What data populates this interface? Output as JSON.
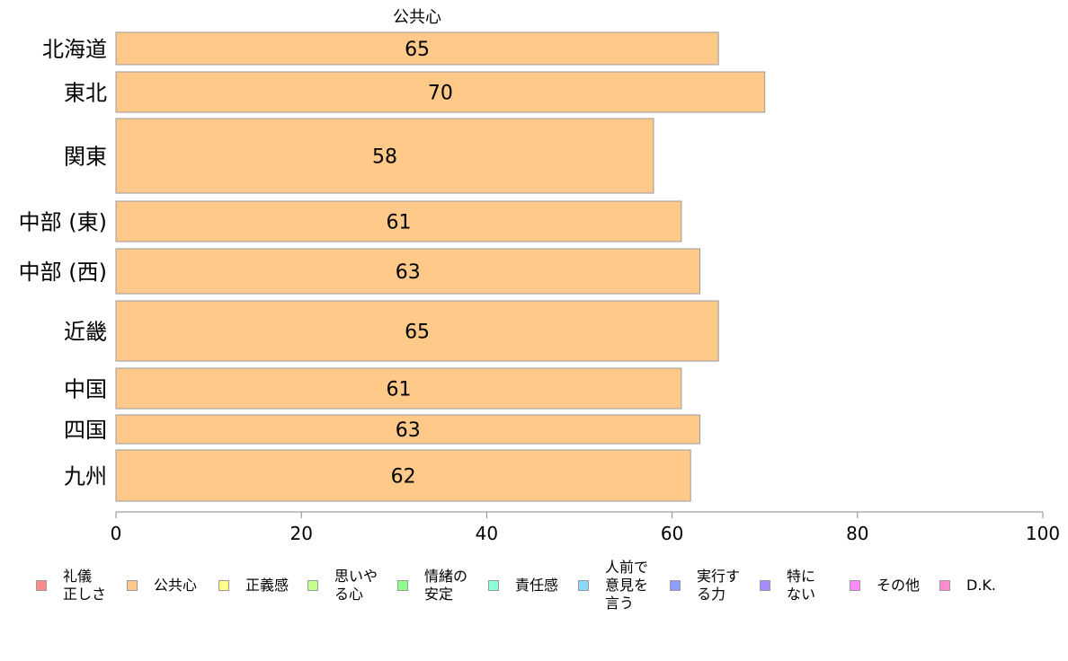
{
  "chart_data": {
    "type": "bar",
    "orientation": "horizontal",
    "title": "公共心",
    "categories": [
      "北海道",
      "東北",
      "関東",
      "中部 (東)",
      "中部 (西)",
      "近畿",
      "中国",
      "四国",
      "九州"
    ],
    "series": [
      {
        "name": "公共心",
        "values": [
          65,
          70,
          58,
          61,
          63,
          65,
          61,
          63,
          62
        ],
        "color": "#FFC98A"
      }
    ],
    "data_labels": [
      "65",
      "70",
      "58",
      "61",
      "63",
      "65",
      "61",
      "63",
      "62"
    ],
    "xlim": [
      0,
      100
    ],
    "x_ticks": [
      0,
      20,
      40,
      60,
      80,
      100
    ],
    "grid": false,
    "legend_position": "bottom"
  },
  "legend": [
    {
      "label": "礼儀\n正しさ",
      "color": "#FF8A8A"
    },
    {
      "label": "公共心",
      "color": "#FFC98A"
    },
    {
      "label": "正義感",
      "color": "#FFFF8A"
    },
    {
      "label": "思いや\nる心",
      "color": "#C4FF8A"
    },
    {
      "label": "情緒の\n安定",
      "color": "#8AFF8A"
    },
    {
      "label": "責任感",
      "color": "#8AFFD8"
    },
    {
      "label": "人前で\n意見を\n言う",
      "color": "#8AD8FF"
    },
    {
      "label": "実行す\nる力",
      "color": "#8A9EFF"
    },
    {
      "label": "特に\nない",
      "color": "#A88AFF"
    },
    {
      "label": "その他",
      "color": "#FF8AFF"
    },
    {
      "label": "D.K.",
      "color": "#FF8AD0"
    }
  ],
  "colors": {
    "bar_border": "#9a9a9a",
    "axis": "#888888"
  }
}
